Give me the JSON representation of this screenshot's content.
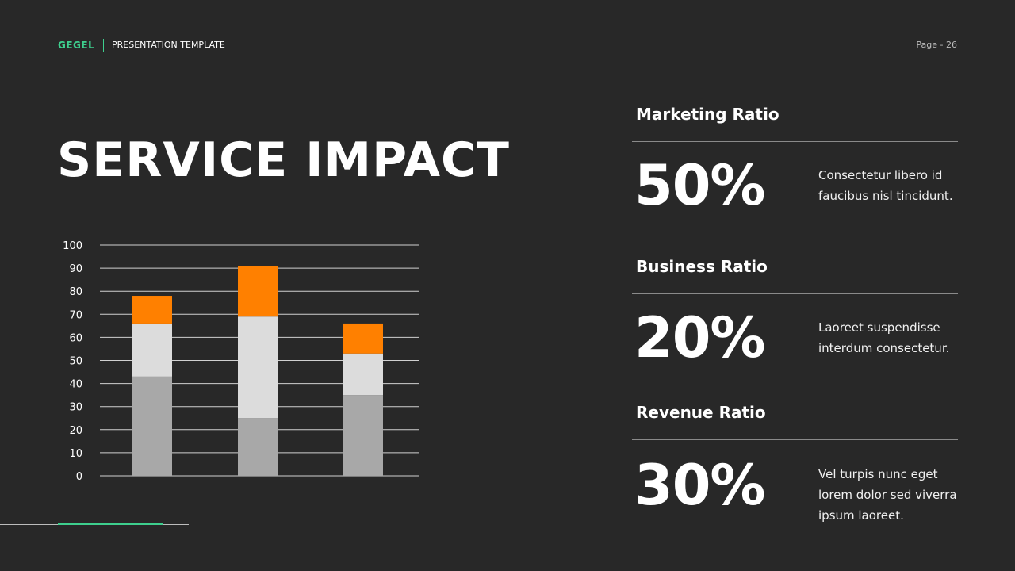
{
  "header": {
    "brand": "GEGEL",
    "template_label": "PRESENTATION TEMPLATE",
    "page": "Page - 26"
  },
  "title": "SERVICE IMPACT",
  "colors": {
    "background": "#282828",
    "accent_green": "#3ecf8e",
    "segment_base": "#a8a8a8",
    "segment_middle": "#dcdcdc",
    "segment_top": "#ff8000"
  },
  "chart_data": {
    "type": "bar",
    "stacked": true,
    "categories": [
      "",
      "",
      ""
    ],
    "series": [
      {
        "values": [
          43,
          25,
          35
        ]
      },
      {
        "values": [
          23,
          44,
          18
        ]
      },
      {
        "values": [
          12,
          22,
          13
        ]
      }
    ],
    "yticks": [
      0,
      10,
      20,
      30,
      40,
      50,
      60,
      70,
      80,
      90,
      100
    ],
    "ylim": [
      0,
      100
    ],
    "grid": true,
    "legend": "none"
  },
  "ratios": [
    {
      "title": "Marketing Ratio",
      "value": "50%",
      "description": "Consectetur libero id faucibus nisl tincidunt."
    },
    {
      "title": "Business Ratio",
      "value": "20%",
      "description": "Laoreet suspendisse interdum consectetur."
    },
    {
      "title": "Revenue Ratio",
      "value": "30%",
      "description": "Vel turpis nunc eget lorem dolor sed viverra ipsum laoreet."
    }
  ]
}
